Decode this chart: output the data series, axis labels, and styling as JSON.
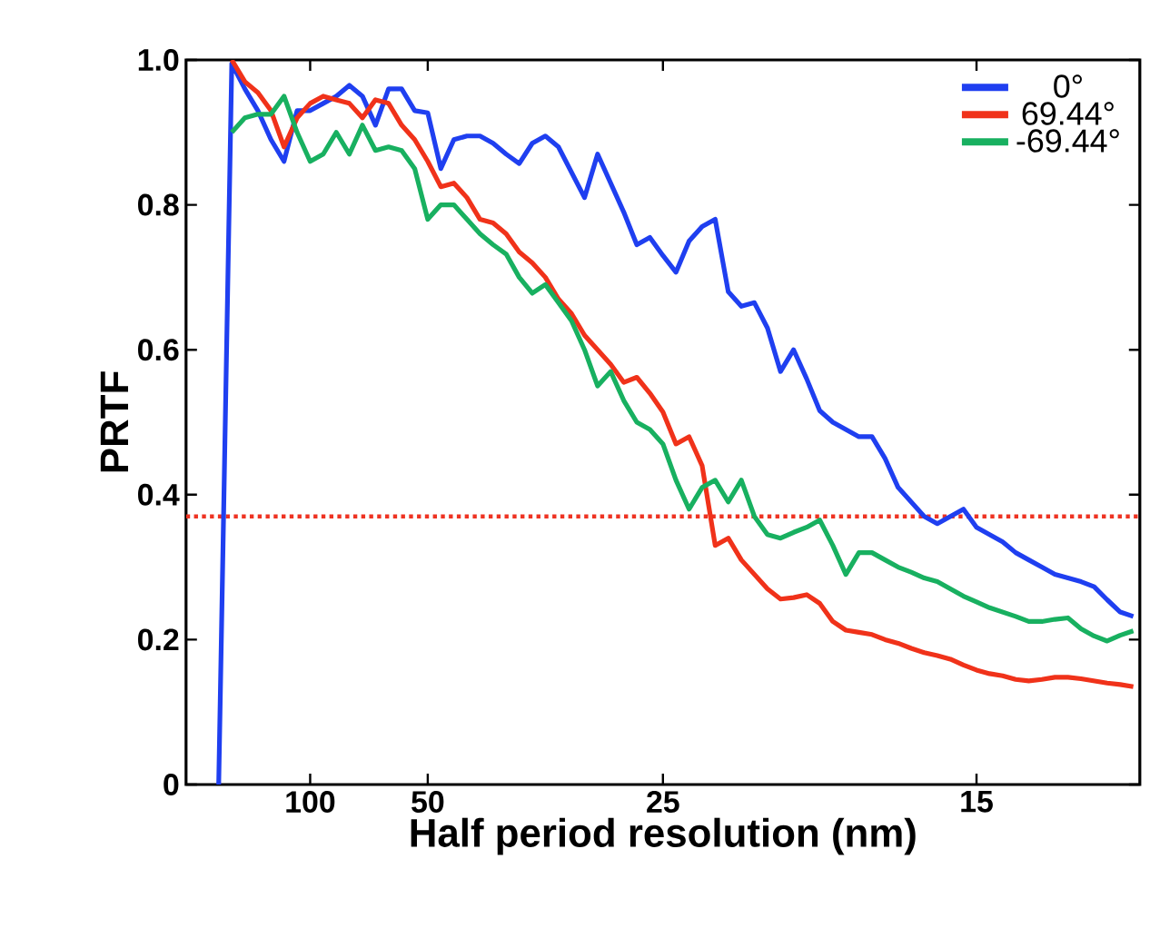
{
  "chart_data": {
    "type": "line",
    "xlabel": "Half period resolution (nm)",
    "ylabel": "PRTF",
    "categories": [
      null,
      null,
      null,
      null,
      null,
      null,
      null,
      null,
      null,
      "100",
      null,
      null,
      null,
      null,
      null,
      null,
      null,
      null,
      "50",
      null,
      null,
      null,
      null,
      null,
      null,
      null,
      null,
      null,
      null,
      null,
      null,
      null,
      null,
      null,
      null,
      null,
      "25",
      null,
      null,
      null,
      null,
      null,
      null,
      null,
      null,
      null,
      null,
      null,
      null,
      null,
      null,
      null,
      null,
      null,
      null,
      null,
      null,
      null,
      null,
      null,
      "15",
      null,
      null,
      null,
      null,
      null,
      null,
      null,
      null,
      null,
      null,
      null,
      null
    ],
    "ylim": [
      0,
      1
    ],
    "yticks": [
      0,
      0.2,
      0.4,
      0.6,
      0.8,
      {
        "value": 1,
        "label": "1.0"
      }
    ],
    "grid": false,
    "legend": "top right",
    "marker": "none",
    "line_style": "solid",
    "ref_lines": [
      {
        "axis": "y",
        "value": 0.37,
        "color": "#ee3322",
        "line_style": "dotted"
      }
    ],
    "series": [
      {
        "name": "0°",
        "color": "#1f3ff0",
        "values": [
          null,
          null,
          0,
          0.995,
          0.96,
          0.93,
          0.89,
          0.86,
          0.93,
          0.93,
          0.94,
          0.95,
          0.965,
          0.95,
          0.91,
          0.96,
          0.96,
          0.93,
          0.927,
          0.85,
          0.89,
          0.895,
          0.895,
          0.885,
          0.87,
          0.857,
          0.885,
          0.895,
          0.88,
          0.845,
          0.81,
          0.87,
          0.83,
          0.79,
          0.745,
          0.755,
          0.73,
          0.707,
          0.75,
          0.77,
          0.78,
          0.68,
          0.66,
          0.665,
          0.63,
          0.57,
          0.6,
          0.56,
          0.516,
          0.5,
          0.49,
          0.48,
          0.48,
          0.45,
          0.41,
          0.39,
          0.37,
          0.36,
          0.37,
          0.38,
          0.355,
          0.345,
          0.335,
          0.32,
          0.31,
          0.3,
          0.29,
          0.285,
          0.28,
          0.273,
          0.255,
          0.238,
          0.232
        ]
      },
      {
        "name": "69.44°",
        "color": "#f0321a",
        "values": [
          null,
          null,
          null,
          1.0,
          0.97,
          0.955,
          0.93,
          0.88,
          0.92,
          0.94,
          0.95,
          0.945,
          0.94,
          0.92,
          0.945,
          0.94,
          0.91,
          0.89,
          0.86,
          0.825,
          0.83,
          0.81,
          0.78,
          0.775,
          0.76,
          0.735,
          0.72,
          0.7,
          0.67,
          0.65,
          0.62,
          0.6,
          0.58,
          0.555,
          0.562,
          0.54,
          0.514,
          0.47,
          0.48,
          0.44,
          0.33,
          0.34,
          0.31,
          0.29,
          0.27,
          0.256,
          0.258,
          0.262,
          0.25,
          0.225,
          0.213,
          0.21,
          0.207,
          0.2,
          0.195,
          0.188,
          0.182,
          0.178,
          0.173,
          0.165,
          0.158,
          0.153,
          0.15,
          0.145,
          0.143,
          0.145,
          0.148,
          0.148,
          0.146,
          0.143,
          0.14,
          0.138,
          0.135
        ]
      },
      {
        "name": "-69.44°",
        "color": "#18b060",
        "values": [
          null,
          null,
          null,
          0.9,
          0.92,
          0.925,
          0.925,
          0.95,
          0.9,
          0.86,
          0.87,
          0.9,
          0.87,
          0.91,
          0.875,
          0.88,
          0.875,
          0.85,
          0.78,
          0.8,
          0.8,
          0.78,
          0.76,
          0.745,
          0.732,
          0.7,
          0.678,
          0.69,
          0.665,
          0.64,
          0.6,
          0.55,
          0.57,
          0.53,
          0.5,
          0.49,
          0.47,
          0.42,
          0.38,
          0.41,
          0.42,
          0.39,
          0.42,
          0.37,
          0.345,
          0.34,
          0.348,
          0.355,
          0.365,
          0.33,
          0.29,
          0.32,
          0.32,
          0.31,
          0.3,
          0.293,
          0.285,
          0.28,
          0.27,
          0.26,
          0.252,
          0.244,
          0.238,
          0.232,
          0.225,
          0.225,
          0.228,
          0.23,
          0.215,
          0.205,
          0.198,
          0.206,
          0.212
        ]
      }
    ]
  }
}
